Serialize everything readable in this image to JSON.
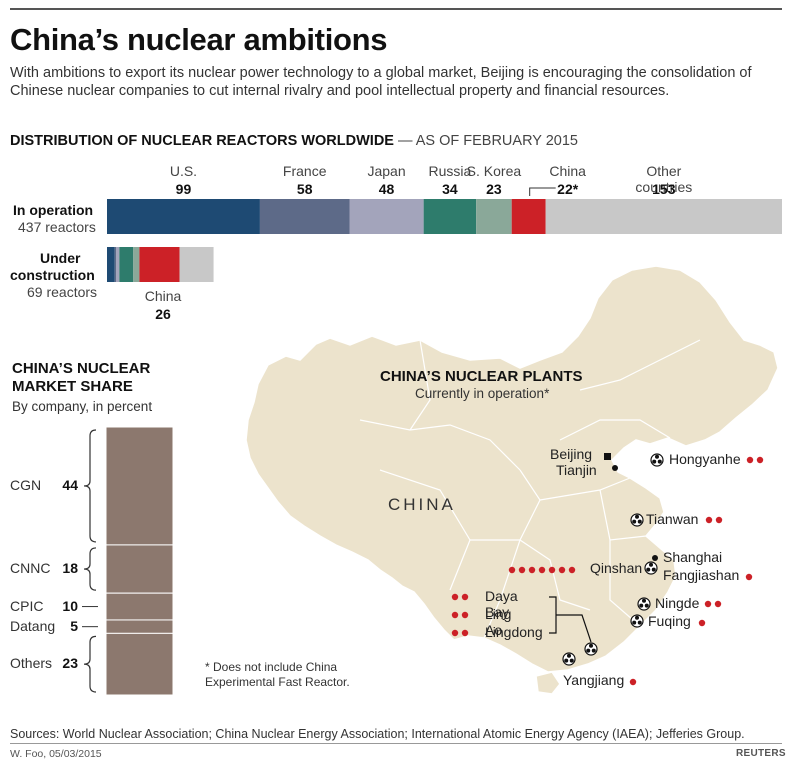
{
  "header": {
    "title": "China’s nuclear ambitions",
    "subtitle": "With ambitions to export its nuclear power technology to a global market, Beijing is encouraging the consolidation of Chinese nuclear companies to cut internal rivalry and pool intellectual property and financial resources."
  },
  "colors": {
    "us": "#1e4a73",
    "france": "#5d6a88",
    "japan": "#a3a4bb",
    "russia": "#2e7c6c",
    "skorea": "#8aa899",
    "china": "#cc2127",
    "other": "#c8c8c8",
    "land": "#ece3cc",
    "share_bar": "#8c786e",
    "plant_dot": "#cc2127"
  },
  "chart_data": [
    {
      "type": "bar",
      "title": "DISTRIBUTION OF NUCLEAR REACTORS WORLDWIDE",
      "subtitle": "— AS OF FEBRUARY 2015",
      "orientation": "horizontal-stacked",
      "categories": [
        "U.S.",
        "France",
        "Japan",
        "Russia",
        "S. Korea",
        "China",
        "Other countries"
      ],
      "display_counts": [
        "99",
        "58",
        "48",
        "34",
        "23",
        "22*",
        "153"
      ],
      "rows": [
        {
          "label": "In operation",
          "sublabel": "437 reactors",
          "total": 437,
          "values": [
            99,
            58,
            48,
            34,
            23,
            22,
            153
          ]
        },
        {
          "label": "Under",
          "label2": "construction",
          "sublabel": "69 reactors",
          "total": 69,
          "values": [
            5,
            1,
            2,
            9,
            4,
            26,
            22
          ],
          "callout": {
            "name": "China",
            "value": "26"
          }
        }
      ]
    },
    {
      "type": "bar",
      "title": "CHINA’S NUCLEAR",
      "title2": "MARKET SHARE",
      "subtitle": "By company, in percent",
      "orientation": "vertical-stacked",
      "segments": [
        {
          "name": "CGN",
          "value": 44
        },
        {
          "name": "CNNC",
          "value": 18
        },
        {
          "name": "CPIC",
          "value": 10
        },
        {
          "name": "Datang",
          "value": 5
        },
        {
          "name": "Others",
          "value": 23
        }
      ]
    }
  ],
  "map": {
    "title": "CHINA’S NUCLEAR PLANTS",
    "subtitle": "Currently in operation*",
    "country_label": "CHINA",
    "cities": [
      "Beijing",
      "Tianjin",
      "Shanghai"
    ],
    "plants": [
      {
        "name": "Hongyanhe",
        "operating_reactors": 2
      },
      {
        "name": "Tianwan",
        "operating_reactors": 2
      },
      {
        "name": "Qinshan",
        "operating_reactors": 7
      },
      {
        "name": "Fangjiashan",
        "operating_reactors": 1
      },
      {
        "name": "Ningde",
        "operating_reactors": 2
      },
      {
        "name": "Fuqing",
        "operating_reactors": 1
      },
      {
        "name": "Daya Bay",
        "operating_reactors": 2
      },
      {
        "name": "Ling Ao",
        "operating_reactors": 2
      },
      {
        "name": "Lingdong",
        "operating_reactors": 2
      },
      {
        "name": "Yangjiang",
        "operating_reactors": 1
      }
    ],
    "note_line1": "* Does not include China",
    "note_line2": "Experimental Fast Reactor."
  },
  "footer": {
    "sources": "Sources: World Nuclear Association; China Nuclear Energy Association; International Atomic Energy Agency (IAEA); Jefferies Group.",
    "byline": "W. Foo, 05/03/2015",
    "brand": "REUTERS"
  }
}
